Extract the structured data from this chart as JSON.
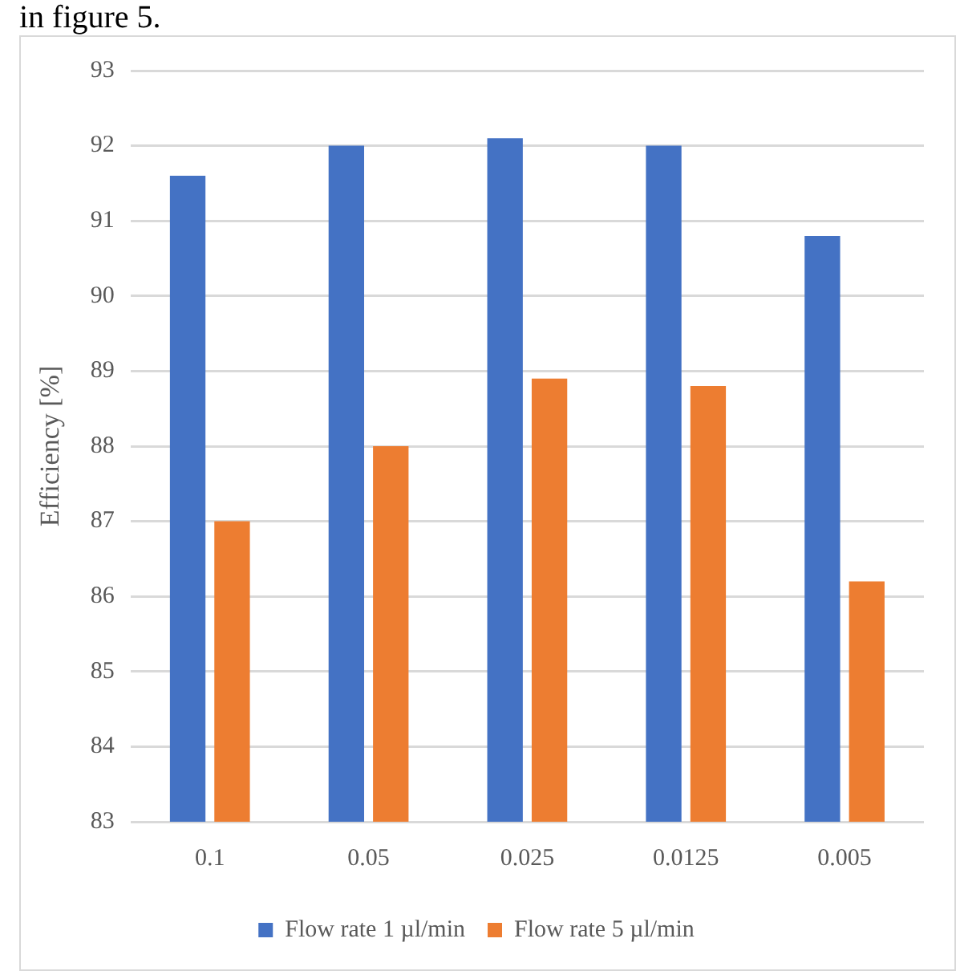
{
  "chart_data": {
    "type": "bar",
    "ylabel": "Efficiency [%]",
    "annotations": [
      "in figure 5."
    ],
    "categories": [
      "0.1",
      "0.05",
      "0.025",
      "0.0125",
      "0.005"
    ],
    "series": [
      {
        "name": "Flow rate 1 µl/min",
        "color": "#4472c4",
        "values": [
          91.6,
          92.0,
          92.1,
          92.0,
          90.8
        ]
      },
      {
        "name": "Flow rate 5 µl/min",
        "color": "#ed7d31",
        "values": [
          87.0,
          88.0,
          88.9,
          88.8,
          86.2
        ]
      }
    ],
    "ylim": [
      83,
      93
    ],
    "yticks": [
      83,
      84,
      85,
      86,
      87,
      88,
      89,
      90,
      91,
      92,
      93
    ],
    "grid": "y",
    "legend": "bottom"
  }
}
